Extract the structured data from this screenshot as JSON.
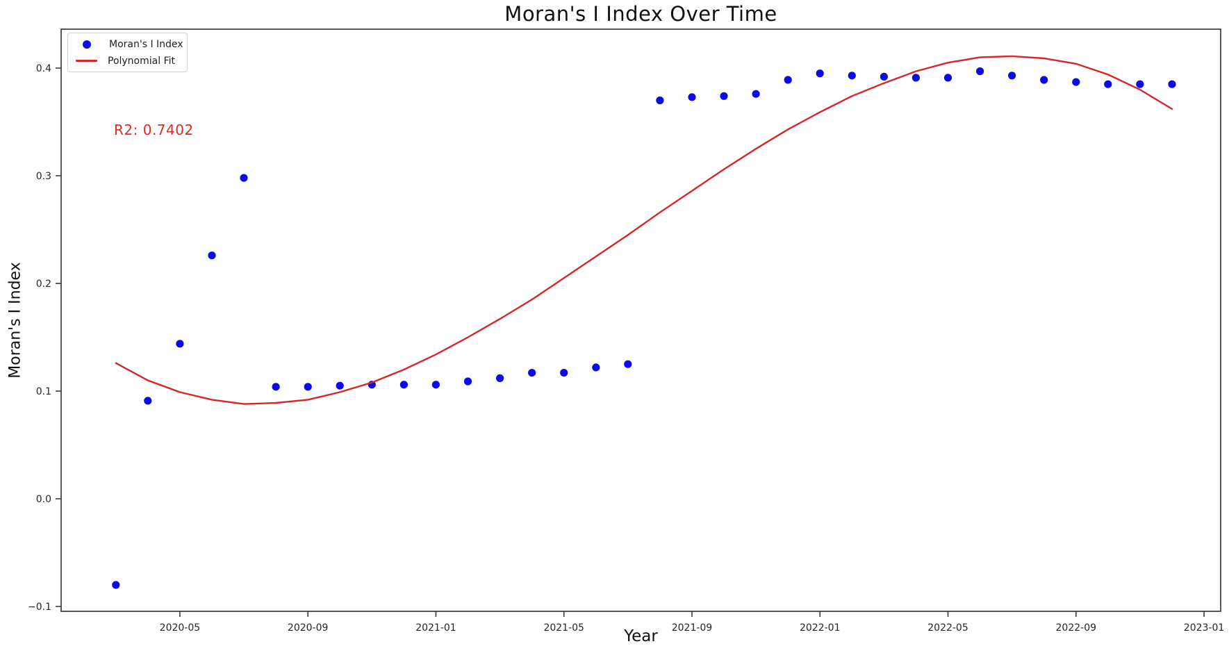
{
  "chart_data": {
    "type": "scatter",
    "title": "Moran's I Index Over Time",
    "xlabel": "Year",
    "ylabel": "Moran's I Index",
    "annotation": "R2: 0.7402",
    "legend": [
      "Moran's I Index",
      "Polynomial Fit"
    ],
    "grid": false,
    "legend_position": "upper-left",
    "x_tick_labels": [
      "2020-05",
      "2020-09",
      "2021-01",
      "2021-05",
      "2021-09",
      "2022-01",
      "2022-05",
      "2022-09",
      "2023-01"
    ],
    "y_tick_values": [
      0.4,
      0.3,
      0.2,
      0.1,
      0.0,
      -0.1
    ],
    "y_tick_labels": [
      "0.4",
      "0.3",
      "0.2",
      "0.1",
      "0.0",
      "−0.1"
    ],
    "x_index_range": [
      -1.71,
      34.52
    ],
    "ylim": [
      -0.1045,
      0.4361
    ],
    "months": [
      "2020-03",
      "2020-04",
      "2020-05",
      "2020-06",
      "2020-07",
      "2020-08",
      "2020-09",
      "2020-10",
      "2020-11",
      "2020-12",
      "2021-01",
      "2021-02",
      "2021-03",
      "2021-04",
      "2021-05",
      "2021-06",
      "2021-07",
      "2021-08",
      "2021-09",
      "2021-10",
      "2021-11",
      "2021-12",
      "2022-01",
      "2022-02",
      "2022-03",
      "2022-04",
      "2022-05",
      "2022-06",
      "2022-07",
      "2022-08",
      "2022-09",
      "2022-10",
      "2022-11",
      "2022-12"
    ],
    "series": [
      {
        "name": "Moran's I Index",
        "style": "points",
        "values": [
          -0.08,
          0.091,
          0.144,
          0.226,
          0.298,
          0.104,
          0.104,
          0.105,
          0.106,
          0.106,
          0.106,
          0.109,
          0.112,
          0.117,
          0.117,
          0.122,
          0.125,
          0.37,
          0.373,
          0.374,
          0.376,
          0.389,
          0.395,
          0.393,
          0.392,
          0.391,
          0.391,
          0.397,
          0.393,
          0.389,
          0.387,
          0.385,
          0.385,
          0.385
        ]
      },
      {
        "name": "Polynomial Fit",
        "style": "line",
        "values": [
          0.126,
          0.11,
          0.099,
          0.092,
          0.088,
          0.089,
          0.092,
          0.099,
          0.108,
          0.12,
          0.134,
          0.15,
          0.167,
          0.185,
          0.205,
          0.225,
          0.245,
          0.266,
          0.286,
          0.306,
          0.325,
          0.343,
          0.359,
          0.374,
          0.386,
          0.397,
          0.405,
          0.41,
          0.411,
          0.409,
          0.404,
          0.394,
          0.38,
          0.362
        ]
      }
    ],
    "colors": {
      "scatter": "#0b0be6",
      "line": "#d62728",
      "annotation": "#e02b20",
      "axis": "#2e2e2e",
      "tick_text": "#262626"
    }
  }
}
